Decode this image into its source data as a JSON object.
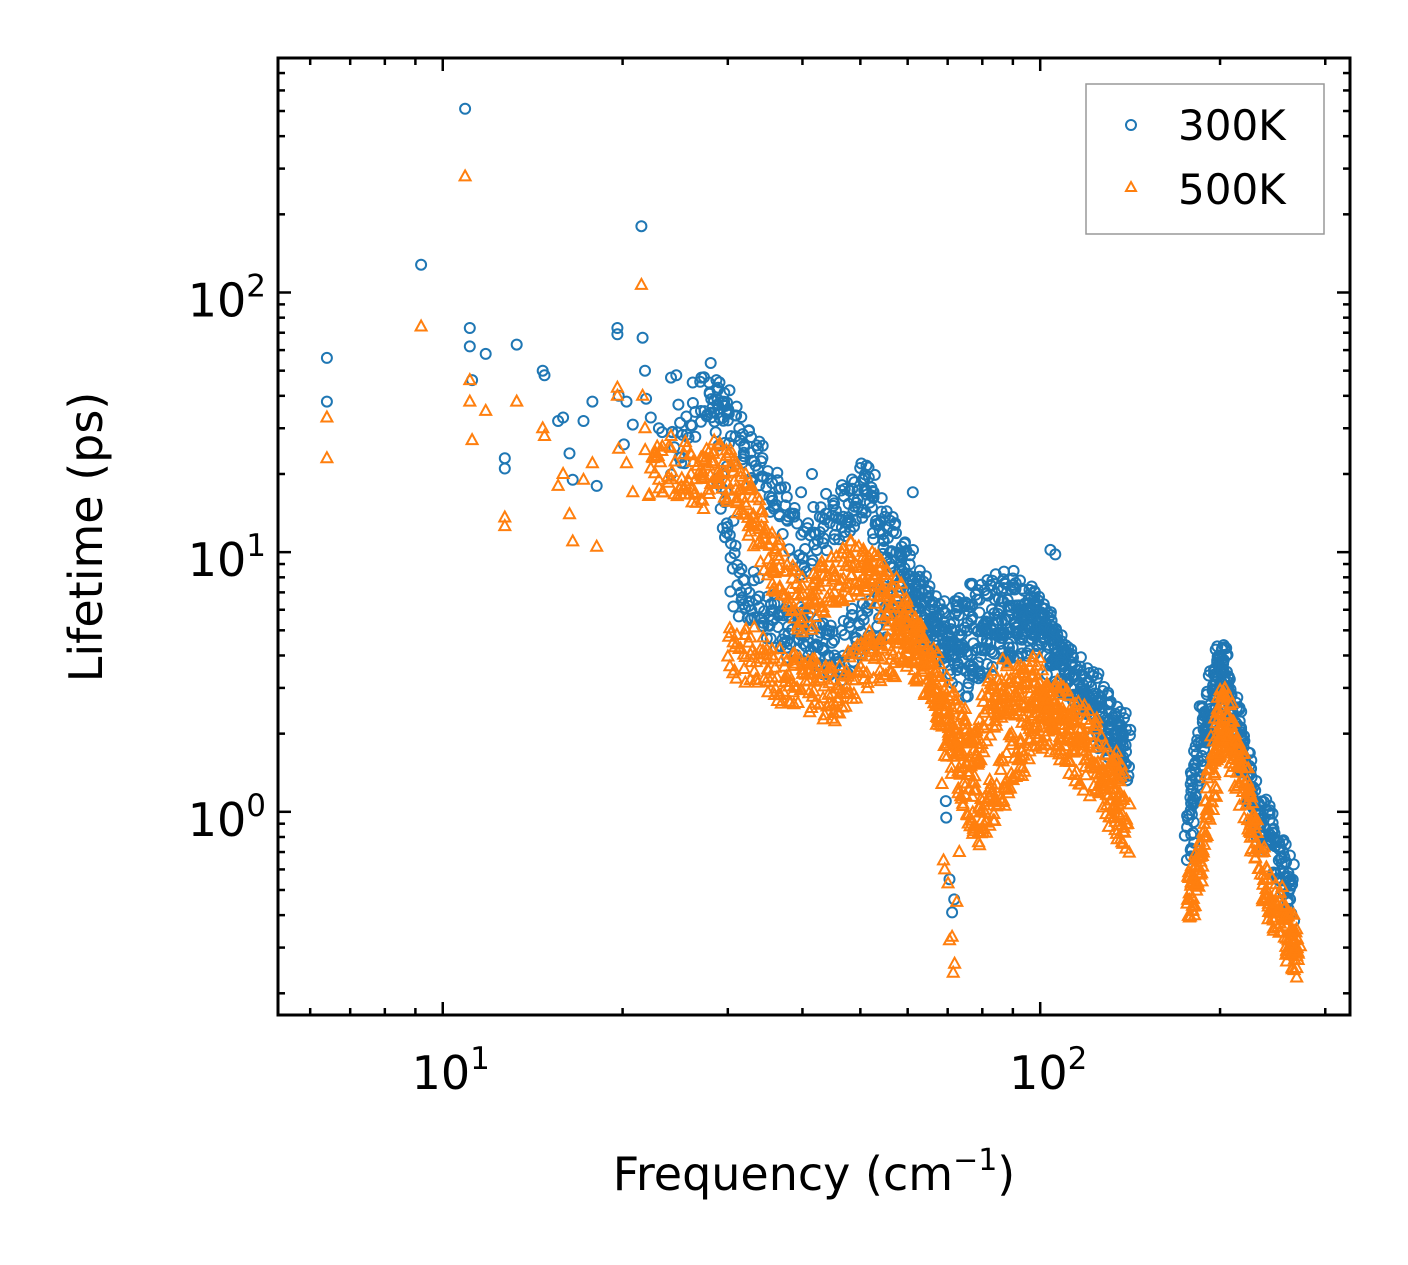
{
  "chart_data": {
    "type": "scatter",
    "xlabel": "Frequency (cm",
    "xlabel_sup": "−1",
    "xlabel_close": ")",
    "ylabel": "Lifetime (ps)",
    "xscale": "log",
    "yscale": "log",
    "xlim": [
      5.3,
      330
    ],
    "ylim": [
      0.165,
      800
    ],
    "x_major_ticks": [
      {
        "value": 10,
        "base": "10",
        "exp": "1"
      },
      {
        "value": 100,
        "base": "10",
        "exp": "2"
      }
    ],
    "y_major_ticks": [
      {
        "value": 1,
        "base": "10",
        "exp": "0"
      },
      {
        "value": 10,
        "base": "10",
        "exp": "1"
      },
      {
        "value": 100,
        "base": "10",
        "exp": "2"
      }
    ],
    "legend_position": "top-right",
    "series": [
      {
        "name": "300K",
        "marker": "circle",
        "color": "#1f77b4",
        "points": [
          [
            6.4,
            56
          ],
          [
            6.4,
            38
          ],
          [
            9.2,
            128
          ],
          [
            10.9,
            510
          ],
          [
            11.1,
            73
          ],
          [
            11.1,
            62
          ],
          [
            11.2,
            46
          ],
          [
            11.8,
            58
          ],
          [
            12.7,
            23
          ],
          [
            12.7,
            21
          ],
          [
            13.3,
            63
          ],
          [
            14.7,
            50
          ],
          [
            14.8,
            48
          ],
          [
            15.6,
            32
          ],
          [
            15.9,
            33
          ],
          [
            16.3,
            24
          ],
          [
            16.5,
            19
          ],
          [
            17.2,
            32
          ],
          [
            17.8,
            38
          ],
          [
            18.1,
            18
          ],
          [
            19.6,
            73
          ],
          [
            19.6,
            69
          ],
          [
            19.7,
            40
          ],
          [
            20.3,
            38
          ],
          [
            20.1,
            26
          ],
          [
            20.8,
            31
          ],
          [
            21.5,
            180
          ],
          [
            21.6,
            67
          ],
          [
            21.8,
            50
          ],
          [
            21.9,
            39
          ],
          [
            22.3,
            33
          ],
          [
            23.0,
            30
          ],
          [
            23.3,
            29
          ],
          [
            24.1,
            47
          ],
          [
            24.6,
            48
          ],
          [
            24.8,
            37
          ],
          [
            25.4,
            22
          ],
          [
            26.2,
            45
          ],
          [
            27.1,
            47
          ],
          [
            27.9,
            45
          ],
          [
            28.9,
            43
          ],
          [
            29.6,
            41
          ],
          [
            30.2,
            42
          ],
          [
            41.5,
            20
          ],
          [
            39.8,
            17
          ],
          [
            61.2,
            17
          ],
          [
            104,
            10.2
          ],
          [
            106,
            9.8
          ],
          [
            69.5,
            1.1
          ],
          [
            69.6,
            0.95
          ],
          [
            70.5,
            0.55
          ],
          [
            71.2,
            0.41
          ],
          [
            71.8,
            0.46
          ],
          [
            139,
            2.4
          ],
          [
            181,
            0.76
          ],
          [
            199,
            3.9
          ],
          [
            205,
            4.0
          ],
          [
            251,
            0.72
          ],
          [
            255,
            0.7
          ],
          [
            262,
            0.46
          ],
          [
            266,
            0.38
          ],
          [
            263,
            0.52
          ]
        ],
        "clusters": [
          [
            [
              24,
              22
            ],
            [
              28,
              44
            ],
            [
              30,
              30
            ],
            [
              33,
              24
            ],
            [
              36,
              16
            ],
            [
              40,
              10
            ],
            [
              44,
              13
            ],
            [
              48,
              15
            ],
            [
              51,
              18
            ],
            [
              54,
              13
            ],
            [
              58,
              10
            ],
            [
              62,
              7
            ],
            [
              66,
              5.5
            ],
            [
              70,
              5
            ],
            [
              76,
              6
            ],
            [
              82,
              6.5
            ],
            [
              88,
              7
            ],
            [
              94,
              6
            ],
            [
              99,
              5.5
            ],
            [
              104,
              4.8
            ],
            [
              110,
              3.5
            ],
            [
              118,
              3
            ],
            [
              126,
              2.7
            ],
            [
              134,
              2
            ],
            [
              140,
              1.7
            ]
          ],
          [
            [
              29,
              25
            ],
            [
              31,
              7
            ],
            [
              34,
              6.5
            ],
            [
              37,
              5
            ],
            [
              40,
              5
            ],
            [
              43,
              4.5
            ],
            [
              46,
              4
            ],
            [
              50,
              5
            ],
            [
              55,
              6
            ],
            [
              60,
              7
            ],
            [
              65,
              5
            ],
            [
              70,
              4
            ],
            [
              75,
              3.5
            ],
            [
              80,
              4
            ],
            [
              86,
              4.5
            ],
            [
              92,
              5
            ],
            [
              98,
              5.2
            ],
            [
              105,
              4.2
            ],
            [
              112,
              3.2
            ],
            [
              122,
              2.5
            ],
            [
              132,
              2
            ],
            [
              140,
              1.6
            ]
          ],
          [
            [
              177,
              0.72
            ],
            [
              181,
              1.2
            ],
            [
              186,
              2
            ],
            [
              192,
              2.6
            ],
            [
              198,
              3.4
            ],
            [
              202,
              3.5
            ],
            [
              206,
              2.8
            ],
            [
              212,
              2.2
            ],
            [
              218,
              1.6
            ],
            [
              226,
              1.2
            ],
            [
              235,
              0.95
            ],
            [
              245,
              0.75
            ],
            [
              255,
              0.62
            ],
            [
              265,
              0.48
            ]
          ]
        ]
      },
      {
        "name": "500K",
        "marker": "triangle",
        "color": "#ff7f0e",
        "points": [
          [
            6.4,
            33
          ],
          [
            6.4,
            23
          ],
          [
            9.2,
            74
          ],
          [
            10.9,
            280
          ],
          [
            11.1,
            46
          ],
          [
            11.1,
            38
          ],
          [
            11.2,
            27
          ],
          [
            11.8,
            35
          ],
          [
            12.7,
            13.6
          ],
          [
            12.7,
            12.6
          ],
          [
            13.3,
            38
          ],
          [
            14.7,
            30
          ],
          [
            14.8,
            28
          ],
          [
            15.6,
            18
          ],
          [
            15.9,
            20
          ],
          [
            16.3,
            14
          ],
          [
            16.5,
            11
          ],
          [
            17.2,
            19
          ],
          [
            17.8,
            22
          ],
          [
            18.1,
            10.5
          ],
          [
            19.6,
            43
          ],
          [
            19.6,
            40
          ],
          [
            19.7,
            25
          ],
          [
            20.3,
            22
          ],
          [
            20.8,
            17
          ],
          [
            21.5,
            107
          ],
          [
            21.6,
            40
          ],
          [
            21.8,
            30
          ],
          [
            22.3,
            21
          ],
          [
            23.0,
            19
          ],
          [
            23.3,
            17
          ],
          [
            24.1,
            28
          ],
          [
            68.5,
            1.28
          ],
          [
            68.9,
            0.65
          ],
          [
            69.2,
            0.6
          ],
          [
            70.1,
            0.53
          ],
          [
            70.5,
            0.32
          ],
          [
            71.2,
            0.33
          ],
          [
            71.5,
            0.24
          ],
          [
            71.9,
            0.26
          ],
          [
            72.5,
            0.45
          ],
          [
            73.2,
            0.7
          ]
        ],
        "clusters": [
          [
            [
              22,
              20
            ],
            [
              25,
              21
            ],
            [
              27,
              18
            ],
            [
              29,
              22
            ],
            [
              31,
              18
            ],
            [
              33,
              14
            ],
            [
              35,
              10
            ],
            [
              37,
              8
            ],
            [
              40,
              6
            ],
            [
              43,
              7
            ],
            [
              46,
              8
            ],
            [
              49,
              9
            ],
            [
              52,
              8
            ],
            [
              55,
              7
            ],
            [
              58,
              6
            ],
            [
              62,
              4.8
            ],
            [
              66,
              3.5
            ],
            [
              70,
              2.5
            ],
            [
              74,
              2
            ],
            [
              78,
              1.6
            ],
            [
              82,
              2.5
            ],
            [
              86,
              3
            ],
            [
              90,
              2.8
            ],
            [
              95,
              3.2
            ],
            [
              100,
              3
            ],
            [
              106,
              2.6
            ],
            [
              112,
              2.4
            ],
            [
              120,
              2
            ],
            [
              130,
              1.5
            ],
            [
              138,
              1.2
            ]
          ],
          [
            [
              30,
              4.1
            ],
            [
              33,
              4
            ],
            [
              36,
              3.5
            ],
            [
              39,
              3.2
            ],
            [
              42,
              3
            ],
            [
              45,
              2.8
            ],
            [
              48,
              3.3
            ],
            [
              52,
              3.8
            ],
            [
              56,
              4.2
            ],
            [
              60,
              4.4
            ],
            [
              64,
              3.8
            ],
            [
              68,
              2.5
            ],
            [
              72,
              1.6
            ],
            [
              76,
              1.1
            ],
            [
              80,
              0.9
            ],
            [
              85,
              1.2
            ],
            [
              90,
              1.6
            ],
            [
              96,
              2
            ],
            [
              102,
              2.3
            ],
            [
              108,
              2
            ],
            [
              116,
              1.6
            ],
            [
              126,
              1.3
            ],
            [
              134,
              1
            ],
            [
              140,
              0.85
            ]
          ],
          [
            [
              177,
              0.44
            ],
            [
              181,
              0.5
            ],
            [
              186,
              0.7
            ],
            [
              192,
              1.2
            ],
            [
              198,
              1.9
            ],
            [
              202,
              2.4
            ],
            [
              206,
              2.2
            ],
            [
              212,
              1.7
            ],
            [
              218,
              1.3
            ],
            [
              226,
              0.9
            ],
            [
              235,
              0.6
            ],
            [
              245,
              0.45
            ],
            [
              255,
              0.38
            ],
            [
              265,
              0.3
            ],
            [
              270,
              0.26
            ]
          ]
        ]
      }
    ]
  }
}
